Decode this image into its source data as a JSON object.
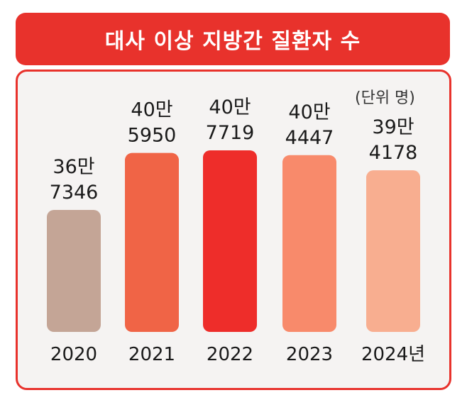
{
  "chart_data": {
    "type": "bar",
    "title": "대사 이상 지방간 질환자 수",
    "unit_label": "(단위 명)",
    "categories": [
      "2020",
      "2021",
      "2022",
      "2023",
      "2024년"
    ],
    "values": [
      367346,
      405950,
      407719,
      404447,
      394178
    ],
    "value_labels": [
      [
        "36만",
        "7346"
      ],
      [
        "40만",
        "5950"
      ],
      [
        "40만",
        "7719"
      ],
      [
        "40만",
        "4447"
      ],
      [
        "39만",
        "4178"
      ]
    ],
    "colors": [
      "#c4a596",
      "#f06446",
      "#ee2d2a",
      "#f88a6b",
      "#f8ae90"
    ],
    "xlabel": "",
    "ylabel": "",
    "ylim": [
      0,
      410000
    ]
  }
}
